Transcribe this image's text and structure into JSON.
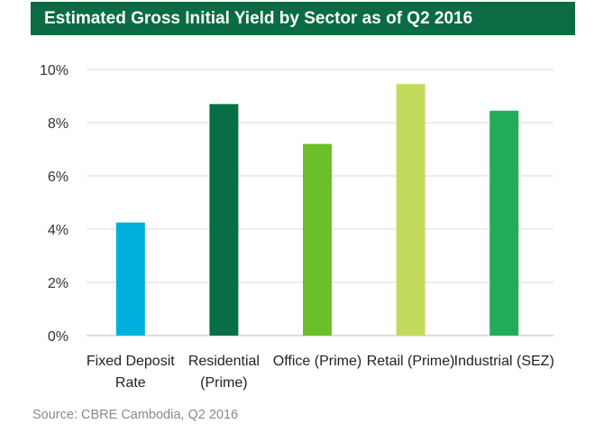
{
  "chart_data": {
    "type": "bar",
    "title": "Estimated Gross Initial Yield by Sector as of Q2 2016",
    "categories": [
      [
        "Fixed Deposit",
        "Rate"
      ],
      [
        "Residential",
        "(Prime)"
      ],
      [
        "Office (Prime)"
      ],
      [
        "Retail (Prime)"
      ],
      [
        "Industrial (SEZ)"
      ]
    ],
    "values": [
      4.25,
      8.7,
      7.2,
      9.45,
      8.45
    ],
    "colors": [
      "#00b0dc",
      "#086e45",
      "#6cbf2a",
      "#c1da5c",
      "#22ac5a"
    ],
    "yticks": [
      "0%",
      "2%",
      "4%",
      "6%",
      "8%",
      "10%"
    ],
    "ylim": [
      0,
      10
    ],
    "grid": true,
    "xlabel": "",
    "ylabel": ""
  },
  "source": "Source: CBRE Cambodia, Q2 2016"
}
